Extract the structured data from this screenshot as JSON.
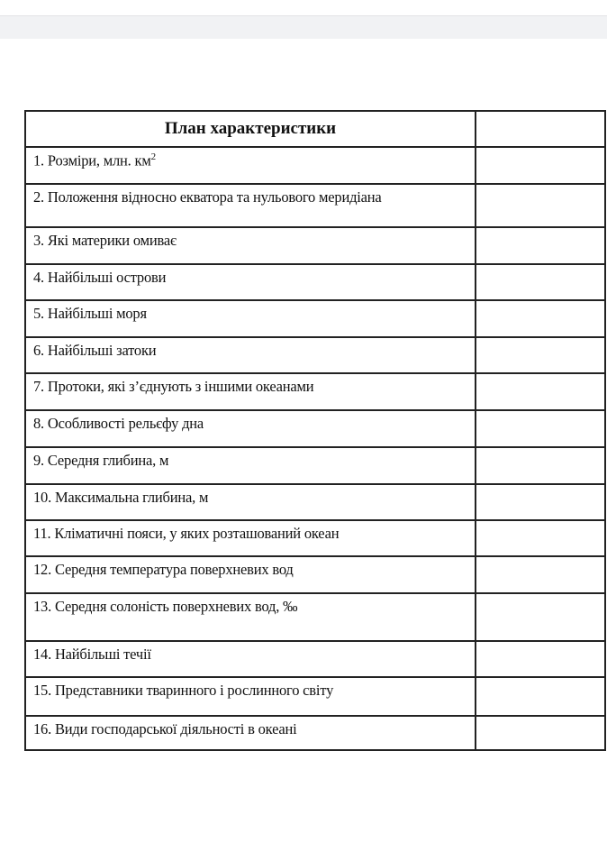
{
  "table": {
    "header": "План характеристики",
    "header_value": "",
    "rows": [
      {
        "label": "1. Розміри, млн. км",
        "sup": "2",
        "value": ""
      },
      {
        "label": "2. Положення відносно екватора та нульового меридіана",
        "value": ""
      },
      {
        "label": "3. Які материки омиває",
        "value": ""
      },
      {
        "label": "4. Найбільші острови",
        "value": ""
      },
      {
        "label": "5. Найбільші моря",
        "value": ""
      },
      {
        "label": "6. Найбільші затоки",
        "value": ""
      },
      {
        "label": "7. Протоки, які з’єднують з іншими океанами",
        "value": ""
      },
      {
        "label": "8. Особливості рельєфу дна",
        "value": ""
      },
      {
        "label": "9. Середня глибина, м",
        "value": ""
      },
      {
        "label": "10. Максимальна глибина, м",
        "value": ""
      },
      {
        "label": "11. Кліматичні пояси, у яких розташований океан",
        "value": ""
      },
      {
        "label": "12. Середня температура поверхневих вод",
        "value": ""
      },
      {
        "label": "13. Середня солоність поверхневих вод, ‰",
        "value": ""
      },
      {
        "label": "14. Найбільші течії",
        "value": ""
      },
      {
        "label": "15. Представники тваринного і рослинного світу",
        "value": ""
      },
      {
        "label": "16. Види господарської діяльності в океані",
        "value": ""
      }
    ]
  }
}
